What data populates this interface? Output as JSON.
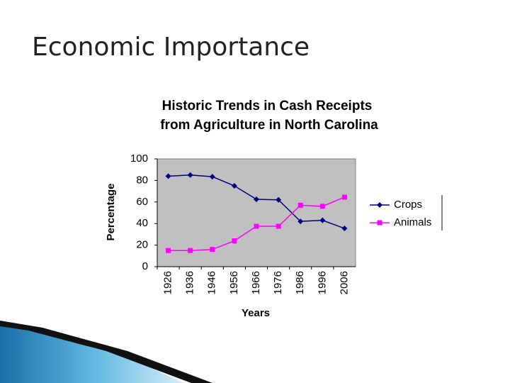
{
  "slide_title": "Economic Importance",
  "chart_data": {
    "type": "line",
    "title": [
      "Historic Trends in Cash Receipts",
      "from Agriculture in North Carolina"
    ],
    "x_label": "Years",
    "y_label": "Percentage",
    "categories": [
      "1926",
      "1936",
      "1946",
      "1956",
      "1966",
      "1976",
      "1986",
      "1996",
      "2006"
    ],
    "series": [
      {
        "name": "Crops",
        "color": "#000080",
        "marker": "diamond",
        "values": [
          84,
          85,
          83.5,
          75,
          62.5,
          62,
          42,
          43,
          35.5
        ]
      },
      {
        "name": "Animals",
        "color": "#ff00ff",
        "marker": "square",
        "values": [
          15,
          15,
          16,
          24,
          37.5,
          37.5,
          57,
          56,
          64.5
        ]
      }
    ],
    "ylim": [
      0,
      100
    ],
    "yticks": [
      0,
      20,
      40,
      60,
      80,
      100
    ],
    "plot_background": "#c0c0c0",
    "legend": "right"
  }
}
